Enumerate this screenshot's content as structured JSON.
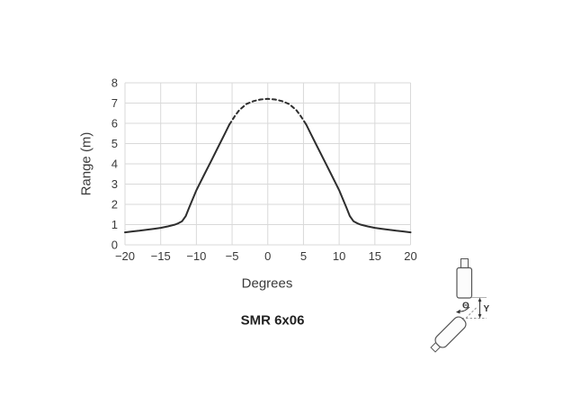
{
  "colors": {
    "background": "#ffffff",
    "curve": "#2e2e2e",
    "grid": "#d9d9d9",
    "text": "#3a3a3a",
    "diagram_outline": "#555555"
  },
  "chart": {
    "ylabel": "Range (m)",
    "xlabel": "Degrees",
    "caption": "SMR 6x06"
  },
  "chart_data": {
    "type": "line",
    "title": "SMR 6x06",
    "xlabel": "Degrees",
    "ylabel": "Range (m)",
    "xlim": [
      -20,
      20
    ],
    "ylim": [
      0,
      8
    ],
    "xticks": [
      -20,
      -15,
      -10,
      -5,
      0,
      5,
      10,
      15,
      20
    ],
    "yticks": [
      0,
      1,
      2,
      3,
      4,
      5,
      6,
      7,
      8
    ],
    "grid": true,
    "legend": false,
    "line_color": "#2e2e2e",
    "grid_color": "#d9d9d9",
    "peak_range_m": 7.2,
    "series": [
      {
        "name": "beam-pattern-solid-left",
        "style": "solid",
        "points": [
          [
            -20,
            0.62
          ],
          [
            -19,
            0.66
          ],
          [
            -18,
            0.7
          ],
          [
            -17,
            0.74
          ],
          [
            -16,
            0.79
          ],
          [
            -15,
            0.84
          ],
          [
            -14,
            0.91
          ],
          [
            -13,
            1.0
          ],
          [
            -12.5,
            1.07
          ],
          [
            -12,
            1.17
          ],
          [
            -11.5,
            1.42
          ],
          [
            -11,
            1.85
          ],
          [
            -10,
            2.7
          ],
          [
            -9,
            3.4
          ],
          [
            -8,
            4.1
          ],
          [
            -7,
            4.8
          ],
          [
            -6,
            5.5
          ],
          [
            -5.4,
            5.93
          ]
        ]
      },
      {
        "name": "beam-pattern-dashed-peak",
        "style": "dashed",
        "points": [
          [
            -5.4,
            5.93
          ],
          [
            -5,
            6.15
          ],
          [
            -4.5,
            6.42
          ],
          [
            -4,
            6.65
          ],
          [
            -3,
            6.95
          ],
          [
            -2,
            7.1
          ],
          [
            -1,
            7.18
          ],
          [
            0,
            7.21
          ],
          [
            1,
            7.18
          ],
          [
            2,
            7.1
          ],
          [
            3,
            6.95
          ],
          [
            4,
            6.65
          ],
          [
            4.5,
            6.42
          ],
          [
            5,
            6.15
          ],
          [
            5.4,
            5.93
          ]
        ]
      },
      {
        "name": "beam-pattern-solid-right",
        "style": "solid",
        "points": [
          [
            5.4,
            5.93
          ],
          [
            6,
            5.5
          ],
          [
            7,
            4.8
          ],
          [
            8,
            4.1
          ],
          [
            9,
            3.4
          ],
          [
            10,
            2.7
          ],
          [
            11,
            1.85
          ],
          [
            11.5,
            1.42
          ],
          [
            12,
            1.17
          ],
          [
            12.5,
            1.07
          ],
          [
            13,
            1.0
          ],
          [
            14,
            0.91
          ],
          [
            15,
            0.84
          ],
          [
            16,
            0.79
          ],
          [
            17,
            0.74
          ],
          [
            18,
            0.7
          ],
          [
            19,
            0.66
          ],
          [
            20,
            0.62
          ]
        ]
      }
    ]
  },
  "diagram": {
    "angle_label": "Θ",
    "distance_label": "Y"
  }
}
